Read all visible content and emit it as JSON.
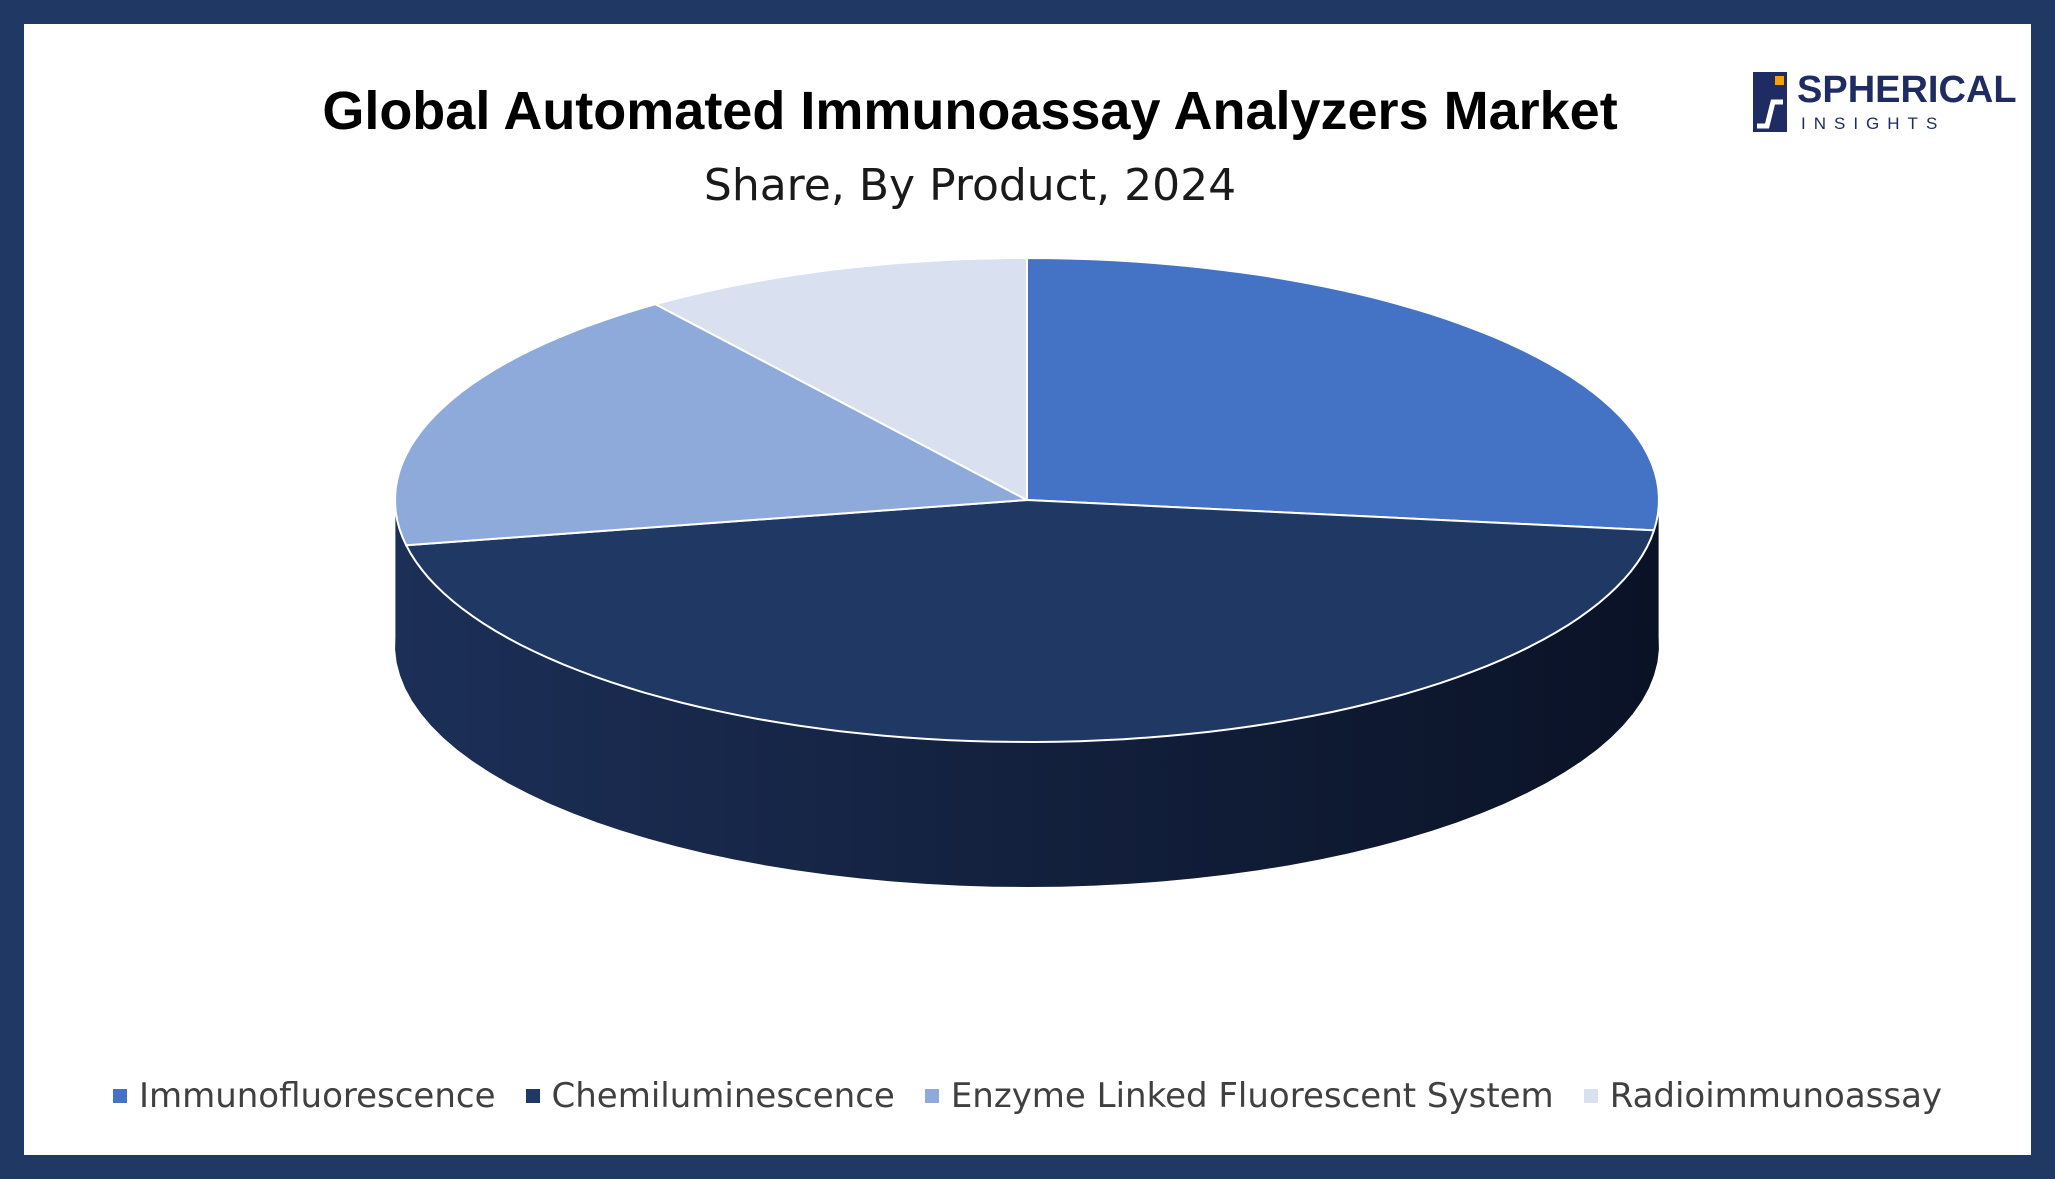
{
  "colors": {
    "frame": "#1f3864",
    "immunofluorescence": "#4472c4",
    "chemiluminescence": "#1f3864",
    "chemiluminescence_side_light": "#1c305a",
    "chemiluminescence_side_dark": "#0c1528",
    "enzyme_linked": "#8eaadb",
    "radioimmunoassay": "#d9e0ef"
  },
  "logo": {
    "name": "SPHERICAL",
    "tagline": "INSIGHTS"
  },
  "chart_data": {
    "type": "pie",
    "style": "3d",
    "title": "Global Automated Immunoassay Analyzers Market",
    "subtitle": "Share, By Product, 2024",
    "unit": "%",
    "legend_position": "bottom",
    "slices": [
      {
        "name": "Immunofluorescence",
        "value": 27,
        "color": "#4472c4"
      },
      {
        "name": "Chemiluminescence",
        "value": 45,
        "color": "#1f3864"
      },
      {
        "name": "Enzyme Linked Fluorescent System",
        "value": 18,
        "color": "#8eaadb"
      },
      {
        "name": "Radioimmunoassay",
        "value": 10,
        "color": "#d9e0ef"
      }
    ]
  }
}
